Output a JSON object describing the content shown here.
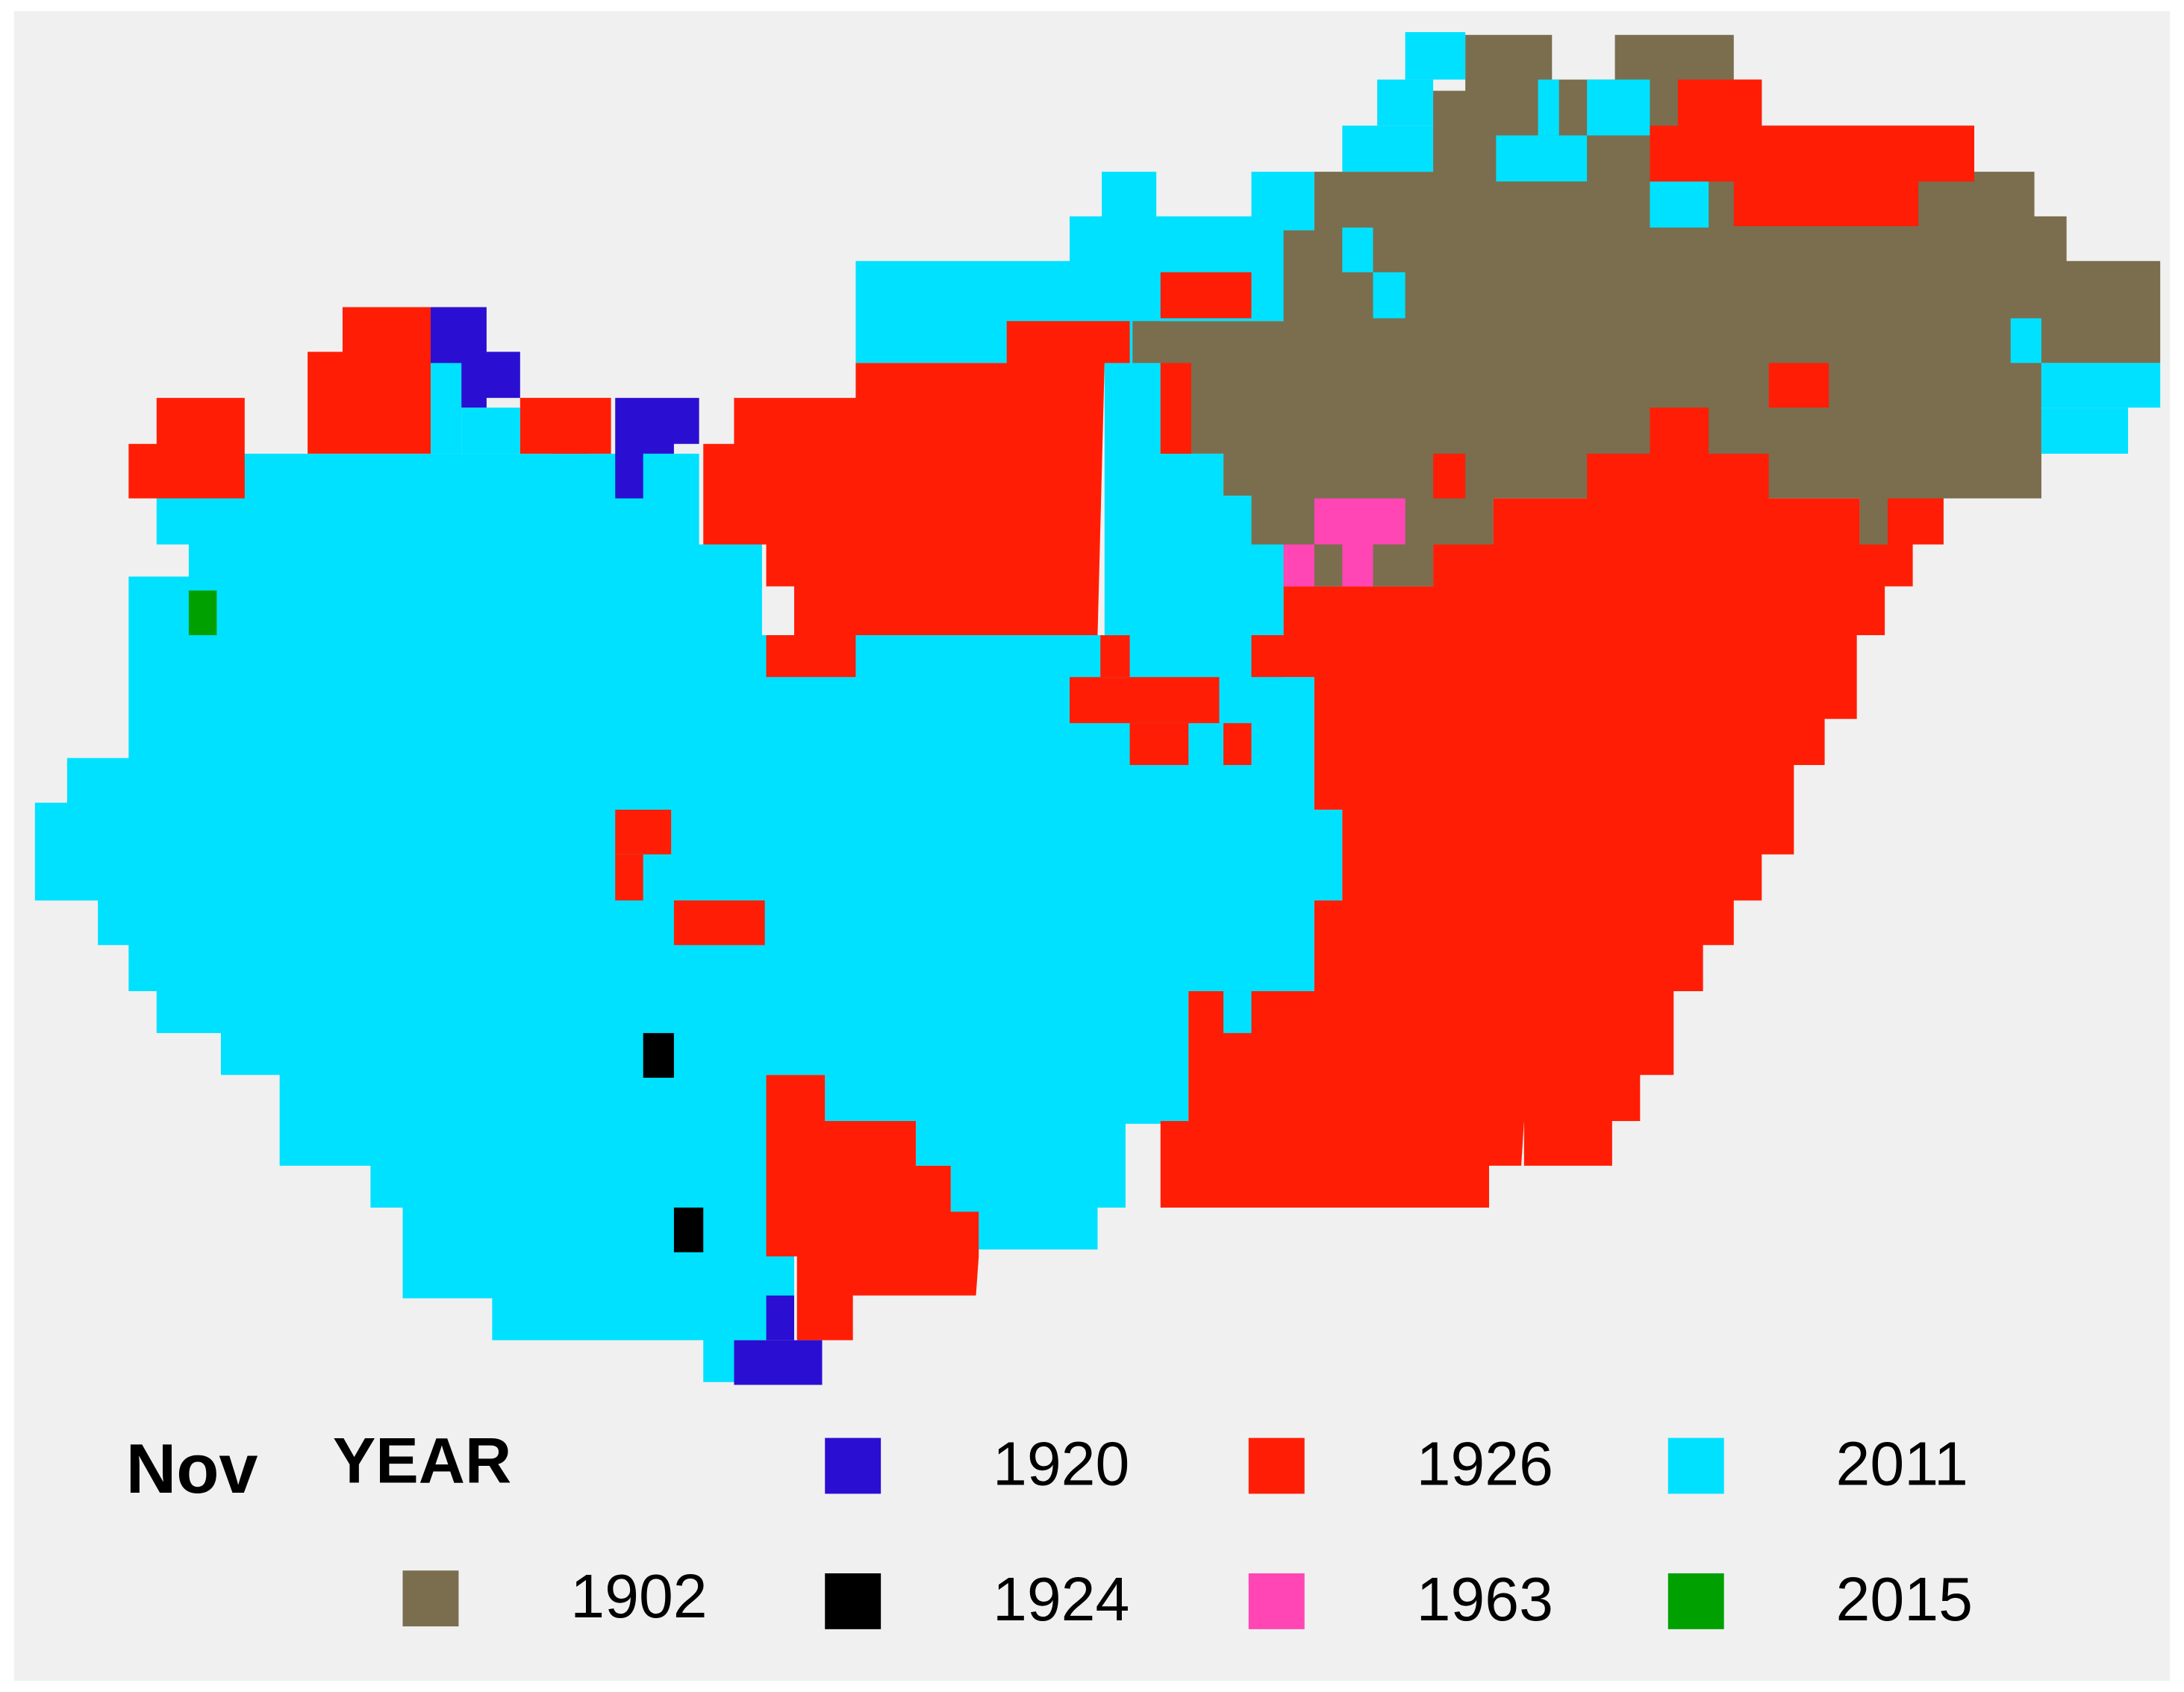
{
  "map": {
    "title": "Nov",
    "legend_title": "YEAR",
    "legend": [
      {
        "label": "1920",
        "color": "#2a0fd2"
      },
      {
        "label": "1926",
        "color": "#ff1e05"
      },
      {
        "label": "2011",
        "color": "#00e1ff"
      },
      {
        "label": "1902",
        "color": "#7a6e4e"
      },
      {
        "label": "1924",
        "color": "#000000"
      },
      {
        "label": "1963",
        "color": "#ff46b4"
      },
      {
        "label": "2015",
        "color": "#00a000"
      }
    ]
  }
}
